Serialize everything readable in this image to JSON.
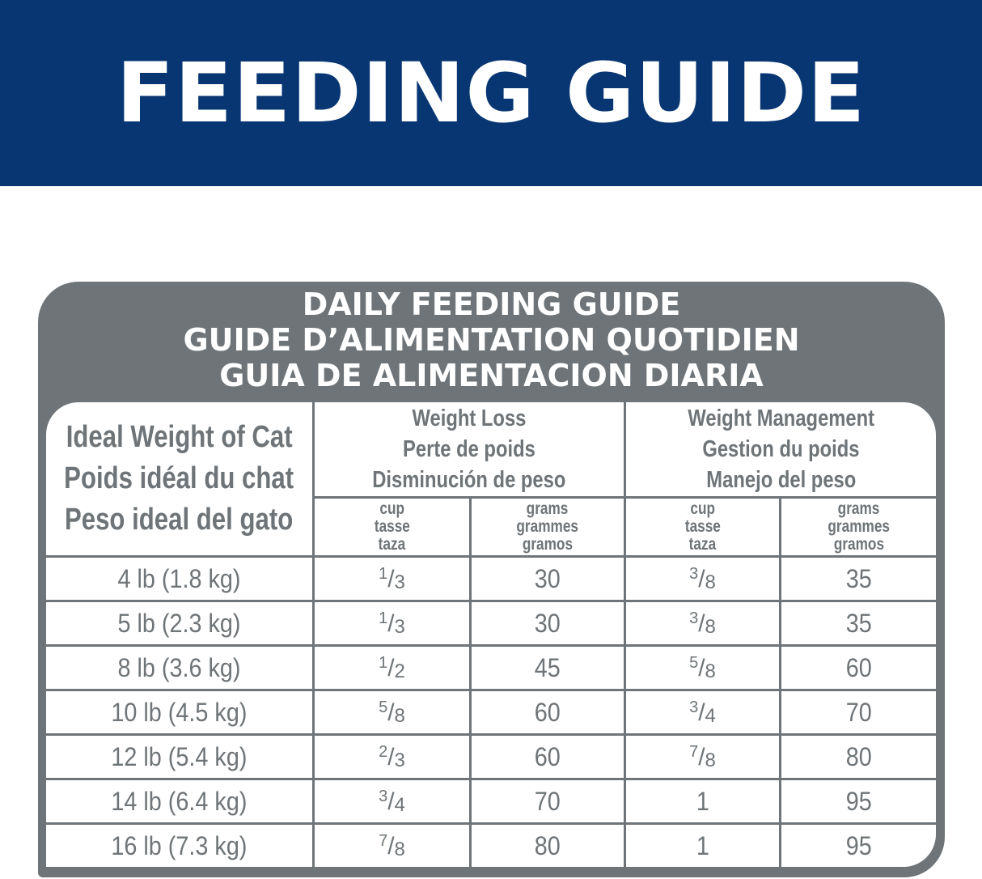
{
  "banner": {
    "title": "FEEDING GUIDE"
  },
  "colors": {
    "banner": "#073672",
    "panel": "#6e7477",
    "text": "#6e7477"
  },
  "panel": {
    "title_lines": [
      "DAILY FEEDING GUIDE",
      "GUIDE D’ALIMENTATION QUOTIDIEN",
      "GUIA DE ALIMENTACION DIARIA"
    ]
  },
  "table": {
    "weight_header": [
      "Ideal Weight of Cat",
      "Poids idéal du chat",
      "Peso ideal del gato"
    ],
    "groups": [
      {
        "lines": [
          "Weight Loss",
          "Perte de poids",
          "Disminución de peso"
        ]
      },
      {
        "lines": [
          "Weight Management",
          "Gestion du poids",
          "Manejo del peso"
        ]
      }
    ],
    "units": {
      "cup": [
        "cup",
        "tasse",
        "taza"
      ],
      "grams": [
        "grams",
        "grammes",
        "gramos"
      ]
    },
    "rows": [
      {
        "weight": "4 lb (1.8 kg)",
        "wl_cup": {
          "n": "1",
          "d": "3"
        },
        "wl_g": "30",
        "wm_cup": {
          "n": "3",
          "d": "8"
        },
        "wm_g": "35"
      },
      {
        "weight": "5 lb (2.3 kg)",
        "wl_cup": {
          "n": "1",
          "d": "3"
        },
        "wl_g": "30",
        "wm_cup": {
          "n": "3",
          "d": "8"
        },
        "wm_g": "35"
      },
      {
        "weight": "8 lb (3.6 kg)",
        "wl_cup": {
          "n": "1",
          "d": "2"
        },
        "wl_g": "45",
        "wm_cup": {
          "n": "5",
          "d": "8"
        },
        "wm_g": "60"
      },
      {
        "weight": "10 lb (4.5 kg)",
        "wl_cup": {
          "n": "5",
          "d": "8"
        },
        "wl_g": "60",
        "wm_cup": {
          "n": "3",
          "d": "4"
        },
        "wm_g": "70"
      },
      {
        "weight": "12 lb (5.4 kg)",
        "wl_cup": {
          "n": "2",
          "d": "3"
        },
        "wl_g": "60",
        "wm_cup": {
          "n": "7",
          "d": "8"
        },
        "wm_g": "80"
      },
      {
        "weight": "14 lb (6.4 kg)",
        "wl_cup": {
          "n": "3",
          "d": "4"
        },
        "wl_g": "70",
        "wm_cup": "1",
        "wm_g": "95"
      },
      {
        "weight": "16 lb (7.3 kg)",
        "wl_cup": {
          "n": "7",
          "d": "8"
        },
        "wl_g": "80",
        "wm_cup": "1",
        "wm_g": "95"
      }
    ]
  }
}
